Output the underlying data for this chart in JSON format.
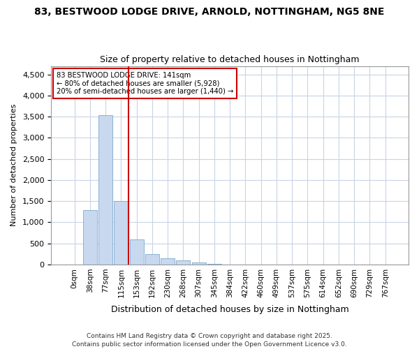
{
  "title": "83, BESTWOOD LODGE DRIVE, ARNOLD, NOTTINGHAM, NG5 8NE",
  "subtitle": "Size of property relative to detached houses in Nottingham",
  "xlabel": "Distribution of detached houses by size in Nottingham",
  "ylabel": "Number of detached properties",
  "bar_labels": [
    "0sqm",
    "38sqm",
    "77sqm",
    "115sqm",
    "153sqm",
    "192sqm",
    "230sqm",
    "268sqm",
    "307sqm",
    "345sqm",
    "384sqm",
    "422sqm",
    "460sqm",
    "499sqm",
    "537sqm",
    "575sqm",
    "614sqm",
    "652sqm",
    "690sqm",
    "729sqm",
    "767sqm"
  ],
  "bar_values": [
    0,
    1280,
    3530,
    1500,
    600,
    250,
    150,
    90,
    50,
    20,
    5,
    2,
    0,
    0,
    0,
    0,
    0,
    0,
    0,
    0,
    0
  ],
  "bar_color": "#c8d8ee",
  "bar_edge_color": "#7aaad0",
  "property_line_index": 4,
  "annotation_line1": "83 BESTWOOD LODGE DRIVE: 141sqm",
  "annotation_line2": "← 80% of detached houses are smaller (5,928)",
  "annotation_line3": "20% of semi-detached houses are larger (1,440) →",
  "annotation_box_color": "#cc0000",
  "ylim": [
    0,
    4700
  ],
  "yticks": [
    0,
    500,
    1000,
    1500,
    2000,
    2500,
    3000,
    3500,
    4000,
    4500
  ],
  "grid_color": "#c8d4e4",
  "background_color": "#ffffff",
  "fig_background_color": "#ffffff",
  "footer_line1": "Contains HM Land Registry data © Crown copyright and database right 2025.",
  "footer_line2": "Contains public sector information licensed under the Open Government Licence v3.0."
}
